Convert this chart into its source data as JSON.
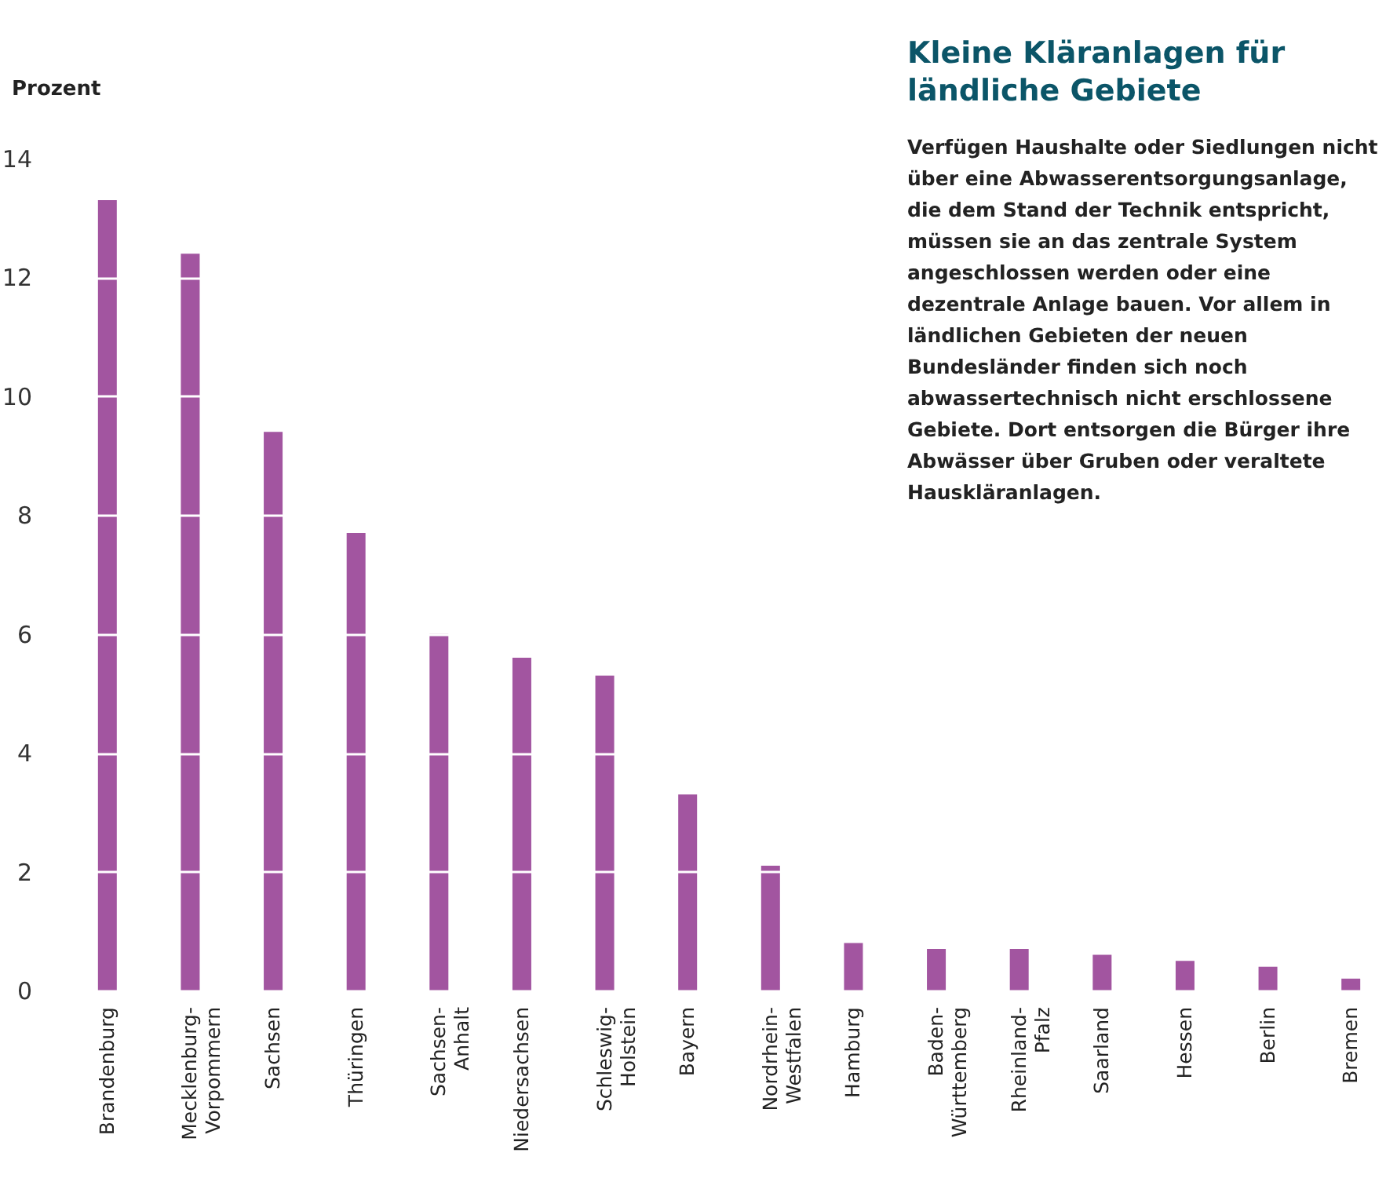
{
  "chart_data": {
    "type": "bar",
    "title": "Kleine Kläranlagen für ländliche Gebiete",
    "ylabel": "Prozent",
    "annotations": [
      "Verfügen Haushalte oder Siedlungen nicht über eine Abwasserentsorgungsanlage, die dem Stand der Technik entspricht, müssen sie an das zentrale System angeschlossen werden oder eine dezentrale Anlage bauen. Vor allem in ländlichen Gebieten der neuen Bundesländer finden sich noch abwassertechnisch nicht erschlossene Gebiete. Dort entsorgen die Bürger ihre Abwässer über Gruben oder veraltete Hauskläranlagen."
    ],
    "categories": [
      "Brandenburg",
      "Mecklenburg-Vorpommern",
      "Sachsen",
      "Thüringen",
      "Sachsen-Anhalt",
      "Niedersachsen",
      "Schleswig-Holstein",
      "Bayern",
      "Nordrhein-Westfalen",
      "Hamburg",
      "Baden-Württemberg",
      "Rheinland-Pfalz",
      "Saarland",
      "Hessen",
      "Berlin",
      "Bremen"
    ],
    "values": [
      13.3,
      12.4,
      9.4,
      7.7,
      6.0,
      5.6,
      5.3,
      3.3,
      2.1,
      0.8,
      0.7,
      0.7,
      0.6,
      0.5,
      0.4,
      0.2
    ],
    "color": "#a255a0",
    "ylim": [
      0,
      14
    ],
    "yticks": [
      0,
      2,
      4,
      6,
      8,
      10,
      12,
      14
    ],
    "grid": "y"
  }
}
